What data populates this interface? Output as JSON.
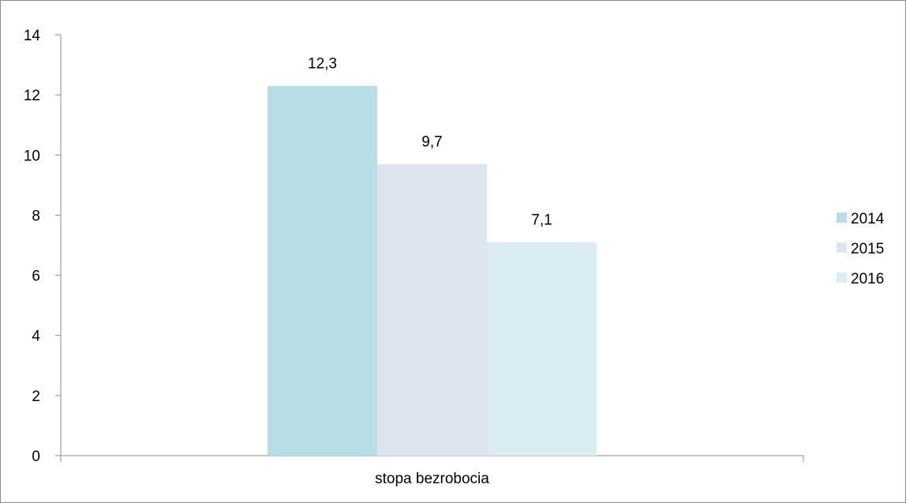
{
  "chart_data": {
    "type": "bar",
    "categories": [
      "stopa bezrobocia"
    ],
    "series": [
      {
        "name": "2014",
        "values": [
          12.3
        ],
        "label": "12,3",
        "color": "#b7dde6"
      },
      {
        "name": "2015",
        "values": [
          9.7
        ],
        "label": "9,7",
        "color": "#dde6f0"
      },
      {
        "name": "2016",
        "values": [
          7.1
        ],
        "label": "7,1",
        "color": "#daedf2"
      }
    ],
    "ylim": [
      0,
      14
    ],
    "yticks": [
      0,
      2,
      4,
      6,
      8,
      10,
      12,
      14
    ],
    "ytick_labels": [
      "0",
      "2",
      "4",
      "6",
      "8",
      "10",
      "12",
      "14"
    ],
    "grid": false,
    "legend_position": "right",
    "title": "",
    "xlabel": "",
    "ylabel": ""
  }
}
